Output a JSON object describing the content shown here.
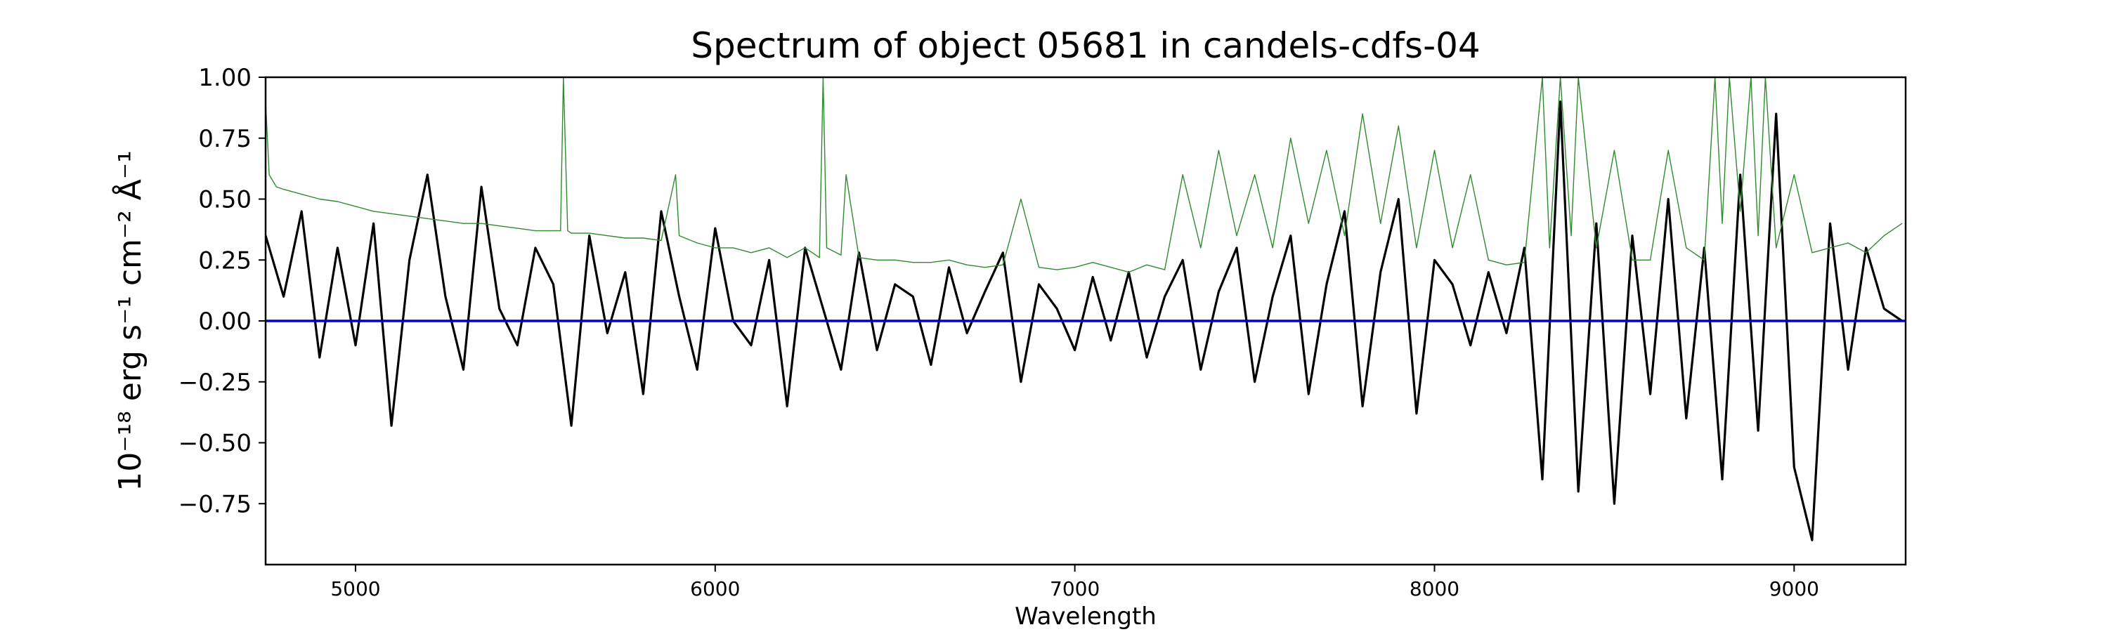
{
  "chart_data": {
    "type": "line",
    "title": "Spectrum of object 05681 in candels-cdfs-04",
    "xlabel": "Wavelength",
    "ylabel": "10⁻¹⁸ erg s⁻¹ cm⁻² Å⁻¹",
    "xlim": [
      4750,
      9310
    ],
    "ylim": [
      -1.0,
      1.0
    ],
    "x_ticks": [
      5000,
      6000,
      7000,
      8000,
      9000
    ],
    "x_tick_labels": [
      "5000",
      "6000",
      "7000",
      "8000",
      "9000"
    ],
    "y_ticks": [
      1.0,
      0.75,
      0.5,
      0.25,
      0.0,
      -0.25,
      -0.5,
      -0.75
    ],
    "y_tick_labels": [
      "1.00",
      "0.75",
      "0.50",
      "0.25",
      "0.00",
      "−0.25",
      "−0.50",
      "−0.75"
    ],
    "grid": false,
    "series": [
      {
        "color": "#000000",
        "x": [
          4750,
          4800,
          4850,
          4900,
          4950,
          5000,
          5050,
          5100,
          5150,
          5200,
          5250,
          5300,
          5350,
          5400,
          5450,
          5500,
          5550,
          5600,
          5650,
          5700,
          5750,
          5800,
          5850,
          5900,
          5950,
          6000,
          6050,
          6100,
          6150,
          6200,
          6250,
          6300,
          6350,
          6400,
          6450,
          6500,
          6550,
          6600,
          6650,
          6700,
          6750,
          6800,
          6850,
          6900,
          6950,
          7000,
          7050,
          7100,
          7150,
          7200,
          7250,
          7300,
          7350,
          7400,
          7450,
          7500,
          7550,
          7600,
          7650,
          7700,
          7750,
          7800,
          7850,
          7900,
          7950,
          8000,
          8050,
          8100,
          8150,
          8200,
          8250,
          8300,
          8350,
          8400,
          8450,
          8500,
          8550,
          8600,
          8650,
          8700,
          8750,
          8800,
          8850,
          8900,
          8950,
          9000,
          9050,
          9100,
          9150,
          9200,
          9250,
          9300
        ],
        "y": [
          0.35,
          0.1,
          0.45,
          -0.15,
          0.3,
          -0.1,
          0.4,
          -0.43,
          0.25,
          0.6,
          0.1,
          -0.2,
          0.55,
          0.05,
          -0.1,
          0.3,
          0.15,
          -0.43,
          0.35,
          -0.05,
          0.2,
          -0.3,
          0.45,
          0.1,
          -0.2,
          0.38,
          0.0,
          -0.1,
          0.25,
          -0.35,
          0.3,
          0.05,
          -0.2,
          0.28,
          -0.12,
          0.15,
          0.1,
          -0.18,
          0.22,
          -0.05,
          0.12,
          0.28,
          -0.25,
          0.15,
          0.05,
          -0.12,
          0.18,
          -0.08,
          0.2,
          -0.15,
          0.1,
          0.25,
          -0.2,
          0.12,
          0.3,
          -0.25,
          0.1,
          0.35,
          -0.3,
          0.15,
          0.45,
          -0.35,
          0.2,
          0.5,
          -0.38,
          0.25,
          0.15,
          -0.1,
          0.2,
          -0.05,
          0.3,
          -0.65,
          0.9,
          -0.7,
          0.4,
          -0.75,
          0.35,
          -0.3,
          0.5,
          -0.4,
          0.3,
          -0.65,
          0.6,
          -0.45,
          0.85,
          -0.6,
          -0.9,
          0.4,
          -0.2,
          0.3,
          0.05,
          0.0
        ]
      },
      {
        "color": "#2e8b2e",
        "x": [
          4750,
          4760,
          4780,
          4800,
          4850,
          4900,
          4950,
          5000,
          5050,
          5100,
          5150,
          5200,
          5250,
          5300,
          5350,
          5400,
          5450,
          5500,
          5550,
          5570,
          5578,
          5590,
          5600,
          5650,
          5700,
          5750,
          5800,
          5850,
          5890,
          5900,
          5950,
          6000,
          6050,
          6100,
          6150,
          6200,
          6250,
          6290,
          6300,
          6310,
          6350,
          6364,
          6400,
          6450,
          6500,
          6550,
          6600,
          6650,
          6700,
          6750,
          6800,
          6850,
          6900,
          6950,
          7000,
          7050,
          7100,
          7150,
          7200,
          7250,
          7300,
          7350,
          7400,
          7450,
          7500,
          7550,
          7600,
          7650,
          7700,
          7750,
          7800,
          7850,
          7900,
          7950,
          8000,
          8050,
          8100,
          8150,
          8200,
          8250,
          8300,
          8320,
          8350,
          8380,
          8400,
          8450,
          8500,
          8550,
          8600,
          8650,
          8700,
          8750,
          8780,
          8800,
          8820,
          8850,
          8880,
          8900,
          8920,
          8950,
          9000,
          9050,
          9100,
          9150,
          9200,
          9250,
          9300
        ],
        "y": [
          0.9,
          0.6,
          0.55,
          0.54,
          0.52,
          0.5,
          0.49,
          0.47,
          0.45,
          0.44,
          0.43,
          0.42,
          0.41,
          0.4,
          0.4,
          0.39,
          0.38,
          0.37,
          0.37,
          0.37,
          1.0,
          0.37,
          0.36,
          0.36,
          0.35,
          0.34,
          0.34,
          0.33,
          0.6,
          0.35,
          0.32,
          0.3,
          0.3,
          0.28,
          0.3,
          0.26,
          0.3,
          0.26,
          1.0,
          0.3,
          0.27,
          0.6,
          0.26,
          0.25,
          0.25,
          0.24,
          0.24,
          0.25,
          0.23,
          0.22,
          0.23,
          0.5,
          0.22,
          0.21,
          0.22,
          0.24,
          0.22,
          0.2,
          0.23,
          0.21,
          0.6,
          0.3,
          0.7,
          0.35,
          0.6,
          0.3,
          0.75,
          0.4,
          0.7,
          0.35,
          0.85,
          0.4,
          0.8,
          0.3,
          0.7,
          0.3,
          0.6,
          0.25,
          0.23,
          0.24,
          1.0,
          0.3,
          1.0,
          0.35,
          1.0,
          0.3,
          0.7,
          0.25,
          0.25,
          0.7,
          0.3,
          0.25,
          1.0,
          0.4,
          1.0,
          0.45,
          1.0,
          0.35,
          1.0,
          0.3,
          0.6,
          0.28,
          0.3,
          0.32,
          0.28,
          0.35,
          0.4
        ]
      },
      {
        "color": "#0000cc",
        "x": [
          4750,
          9310
        ],
        "y": [
          0.0,
          0.0
        ]
      }
    ]
  }
}
